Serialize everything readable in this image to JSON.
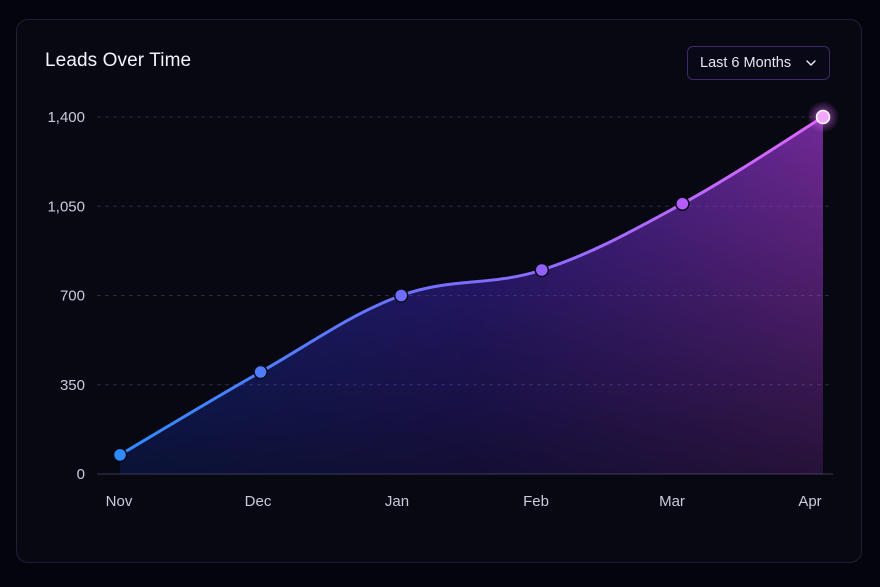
{
  "card": {
    "title": "Leads Over Time",
    "range_select": {
      "selected": "Last 6 Months"
    }
  },
  "colors": {
    "background": "#04050c",
    "card": "#070812",
    "line_start": "#2f8bff",
    "line_mid": "#7c6cff",
    "line_end": "#e066ff",
    "grid": "#2a2c40"
  },
  "icons": {
    "dropdown": "chevron-down-icon"
  },
  "chart_data": {
    "type": "area",
    "title": "Leads Over Time",
    "xlabel": "",
    "ylabel": "",
    "categories": [
      "Nov",
      "Dec",
      "Jan",
      "Feb",
      "Mar",
      "Apr"
    ],
    "values": [
      75,
      400,
      700,
      800,
      1060,
      1400
    ],
    "ylim": [
      0,
      1400
    ],
    "y_ticks": [
      0,
      350,
      700,
      1050,
      1400
    ],
    "y_tick_labels": [
      "0",
      "350",
      "700",
      "1,050",
      "1,400"
    ],
    "grid": true,
    "smooth": true,
    "highlight_last_point": true
  }
}
